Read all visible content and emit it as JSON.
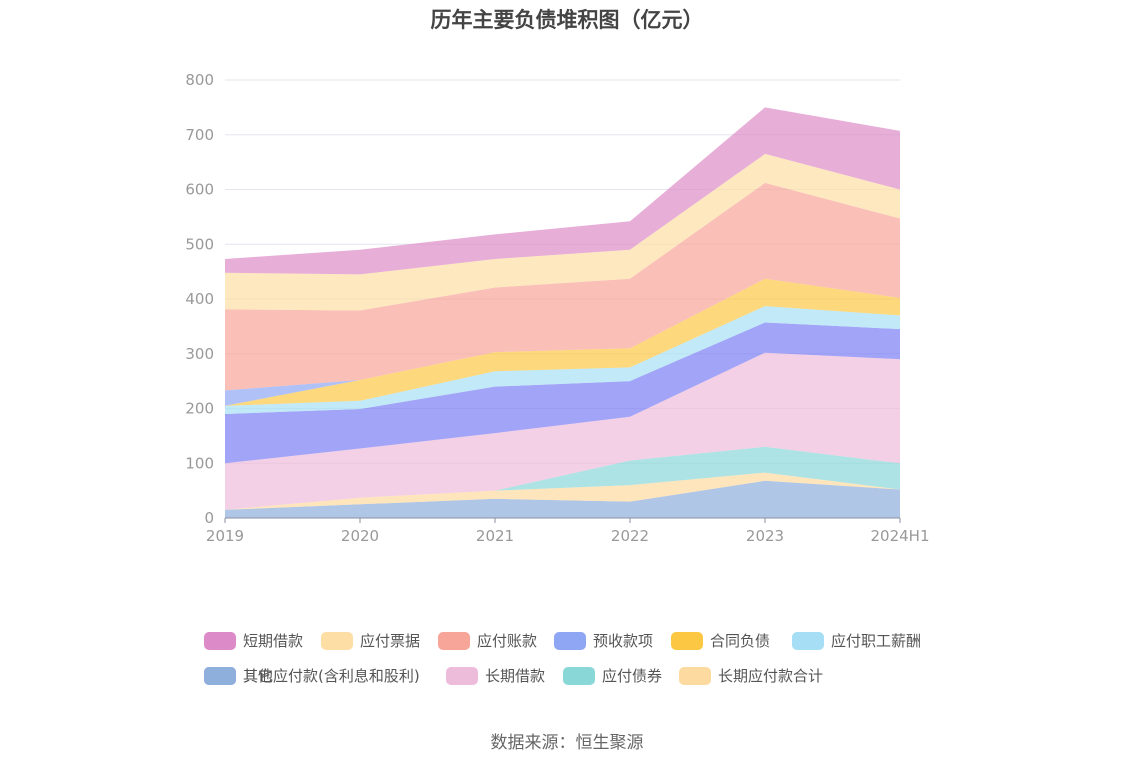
{
  "chart_data": {
    "type": "area",
    "title": "历年主要负债堆积图（亿元）",
    "source": "数据来源：恒生聚源",
    "x": [
      "2019",
      "2020",
      "2021",
      "2022",
      "2023",
      "2024H1"
    ],
    "ylim": [
      0,
      800
    ],
    "yticks": [
      0,
      100,
      200,
      300,
      400,
      500,
      600,
      700,
      800
    ],
    "stacked": true,
    "grid": true,
    "legend_position": "bottom",
    "series": [
      {
        "name": "其它",
        "color": "#8eaedc",
        "values": [
          15,
          25,
          35,
          30,
          68,
          52
        ]
      },
      {
        "name": "长期应付款合计",
        "color": "#fddaa0",
        "values": [
          0,
          12,
          15,
          30,
          15,
          0
        ]
      },
      {
        "name": "应付债券",
        "color": "#8ad7d8",
        "values": [
          0,
          0,
          0,
          45,
          47,
          48
        ]
      },
      {
        "name": "长期借款",
        "color": "#eebcdb",
        "values": [
          85,
          90,
          105,
          80,
          172,
          190
        ]
      },
      {
        "name": "其他应付款(含利息和股利)",
        "color": "#7b7ef5",
        "values": [
          90,
          72,
          85,
          65,
          55,
          55
        ]
      },
      {
        "name": "应付职工薪酬",
        "color": "#a6dff5",
        "values": [
          15,
          15,
          28,
          25,
          30,
          25
        ]
      },
      {
        "name": "合同负债",
        "color": "#fcc844",
        "values": [
          0,
          38,
          35,
          35,
          50,
          32
        ]
      },
      {
        "name": "预收款项",
        "color": "#8fa6f5",
        "values": [
          28,
          0,
          0,
          0,
          0,
          0
        ]
      },
      {
        "name": "应付账款",
        "color": "#f8a599",
        "values": [
          148,
          127,
          118,
          127,
          175,
          145
        ]
      },
      {
        "name": "应付票据",
        "color": "#fddea5",
        "values": [
          67,
          66,
          52,
          53,
          53,
          53
        ]
      },
      {
        "name": "短期借款",
        "color": "#dd8bc8",
        "values": [
          25,
          45,
          45,
          52,
          85,
          107
        ]
      }
    ],
    "legend": [
      {
        "name": "短期借款",
        "color": "#dd8bc8"
      },
      {
        "name": "应付票据",
        "color": "#fddea5"
      },
      {
        "name": "应付账款",
        "color": "#f8a599"
      },
      {
        "name": "预收款项",
        "color": "#8fa6f5"
      },
      {
        "name": "合同负债",
        "color": "#fcc844"
      },
      {
        "name": "应付职工薪酬",
        "color": "#a6dff5"
      },
      {
        "name": "其他应付款(含利息和股利)",
        "color": "#7b7ef5"
      },
      {
        "name": "长期借款",
        "color": "#eebcdb"
      },
      {
        "name": "应付债券",
        "color": "#8ad7d8"
      },
      {
        "name": "长期应付款合计",
        "color": "#fddaa0"
      },
      {
        "name": "其它",
        "color": "#8eaedc"
      }
    ]
  }
}
